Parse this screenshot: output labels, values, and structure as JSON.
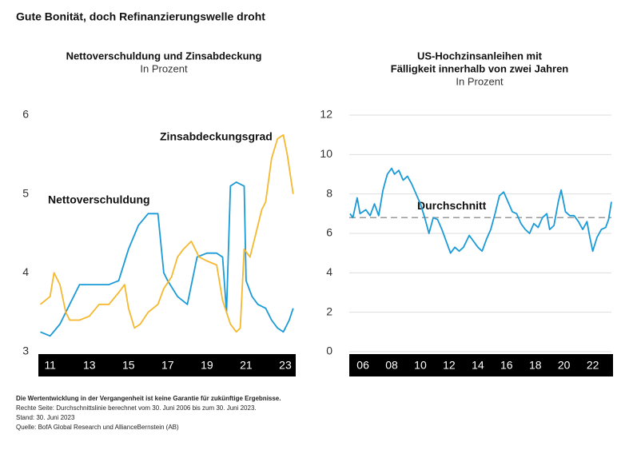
{
  "title": "Gute Bonität, doch Refinanzierungswelle droht",
  "chart_data": [
    {
      "type": "line",
      "title": [
        "Nettoverschuldung und Zinsabdeckung"
      ],
      "subtitle": "In Prozent",
      "xlim": [
        2010.4,
        2023.45
      ],
      "ylim": [
        3,
        6
      ],
      "yticks": [
        3,
        4,
        5,
        6
      ],
      "grid": false,
      "xticks": [
        {
          "value": 2011,
          "label": "11"
        },
        {
          "value": 2013,
          "label": "13"
        },
        {
          "value": 2015,
          "label": "15"
        },
        {
          "value": 2017,
          "label": "17"
        },
        {
          "value": 2019,
          "label": "19"
        },
        {
          "value": 2021,
          "label": "21"
        },
        {
          "value": 2023,
          "label": "23"
        }
      ],
      "series": [
        {
          "name": "Nettoverschuldung",
          "color": "#1a9bd7",
          "x": [
            2010.5,
            2011,
            2011.5,
            2012,
            2012.5,
            2013,
            2013.5,
            2014,
            2014.5,
            2015,
            2015.5,
            2016,
            2016.5,
            2016.8,
            2017,
            2017.5,
            2018,
            2018.5,
            2019,
            2019.5,
            2019.8,
            2020,
            2020.2,
            2020.5,
            2020.9,
            2021,
            2021.3,
            2021.6,
            2022,
            2022.3,
            2022.6,
            2022.9,
            2023.2,
            2023.4
          ],
          "values": [
            3.25,
            3.2,
            3.35,
            3.6,
            3.85,
            3.85,
            3.85,
            3.85,
            3.9,
            4.3,
            4.6,
            4.75,
            4.75,
            4.0,
            3.9,
            3.7,
            3.6,
            4.2,
            4.25,
            4.25,
            4.2,
            3.5,
            5.1,
            5.15,
            5.1,
            3.9,
            3.7,
            3.6,
            3.55,
            3.4,
            3.3,
            3.25,
            3.4,
            3.55
          ]
        },
        {
          "name": "Zinsabdeckungsgrad",
          "color": "#f5b82e",
          "x": [
            2010.5,
            2011,
            2011.2,
            2011.5,
            2011.8,
            2012,
            2012.5,
            2013,
            2013.5,
            2014,
            2014.5,
            2014.8,
            2015,
            2015.3,
            2015.6,
            2016,
            2016.5,
            2016.8,
            2017.2,
            2017.5,
            2017.8,
            2018.2,
            2018.6,
            2019,
            2019.5,
            2019.8,
            2020.2,
            2020.5,
            2020.7,
            2020.9,
            2021.2,
            2021.5,
            2021.8,
            2022,
            2022.3,
            2022.6,
            2022.9,
            2023.1,
            2023.4
          ],
          "values": [
            3.6,
            3.7,
            4.0,
            3.85,
            3.5,
            3.4,
            3.4,
            3.45,
            3.6,
            3.6,
            3.75,
            3.85,
            3.55,
            3.3,
            3.35,
            3.5,
            3.6,
            3.8,
            3.95,
            4.2,
            4.3,
            4.4,
            4.2,
            4.15,
            4.1,
            3.65,
            3.35,
            3.25,
            3.3,
            4.3,
            4.2,
            4.5,
            4.8,
            4.9,
            5.45,
            5.7,
            5.75,
            5.5,
            5.0
          ]
        }
      ]
    },
    {
      "type": "line",
      "title": [
        "US-Hochzinsanleihen mit",
        "Fälligkeit innerhalb von zwei Jahren"
      ],
      "subtitle": "In Prozent",
      "xlim": [
        2005.05,
        2023.3
      ],
      "ylim": [
        0,
        12
      ],
      "yticks": [
        0,
        2,
        4,
        6,
        8,
        10,
        12
      ],
      "grid": true,
      "xticks": [
        {
          "value": 2006,
          "label": "06"
        },
        {
          "value": 2008,
          "label": "08"
        },
        {
          "value": 2010,
          "label": "10"
        },
        {
          "value": 2012,
          "label": "12"
        },
        {
          "value": 2014,
          "label": "14"
        },
        {
          "value": 2016,
          "label": "16"
        },
        {
          "value": 2018,
          "label": "18"
        },
        {
          "value": 2020,
          "label": "20"
        },
        {
          "value": 2022,
          "label": "22"
        }
      ],
      "average": {
        "label": "Durchschnitt",
        "value": 6.8
      },
      "series": [
        {
          "color": "#1a9bd7",
          "x": [
            2005.1,
            2005.3,
            2005.6,
            2005.8,
            2006.2,
            2006.5,
            2006.8,
            2007.1,
            2007.4,
            2007.7,
            2008,
            2008.2,
            2008.5,
            2008.8,
            2009.1,
            2009.4,
            2009.7,
            2010,
            2010.3,
            2010.6,
            2010.9,
            2011.2,
            2011.5,
            2011.8,
            2012.1,
            2012.4,
            2012.7,
            2013,
            2013.4,
            2013.7,
            2014,
            2014.3,
            2014.6,
            2014.9,
            2015.2,
            2015.5,
            2015.8,
            2016.1,
            2016.4,
            2016.7,
            2017,
            2017.3,
            2017.6,
            2017.9,
            2018.2,
            2018.5,
            2018.8,
            2019,
            2019.3,
            2019.6,
            2019.8,
            2020.1,
            2020.4,
            2020.7,
            2021,
            2021.3,
            2021.6,
            2021.8,
            2022,
            2022.3,
            2022.6,
            2022.9,
            2023.1,
            2023.3
          ],
          "values": [
            7.0,
            6.8,
            7.8,
            7.0,
            7.2,
            6.9,
            7.5,
            6.9,
            8.2,
            9.0,
            9.3,
            9.0,
            9.2,
            8.7,
            8.9,
            8.5,
            8.0,
            7.5,
            6.8,
            6.0,
            6.8,
            6.7,
            6.2,
            5.6,
            5.0,
            5.3,
            5.1,
            5.3,
            5.9,
            5.6,
            5.3,
            5.1,
            5.7,
            6.2,
            7.0,
            7.9,
            8.1,
            7.6,
            7.1,
            7.0,
            6.5,
            6.2,
            6.0,
            6.5,
            6.3,
            6.8,
            7.0,
            6.2,
            6.4,
            7.6,
            8.2,
            7.1,
            6.9,
            6.9,
            6.6,
            6.2,
            6.6,
            5.8,
            5.1,
            5.8,
            6.2,
            6.3,
            6.7,
            7.6
          ]
        }
      ]
    }
  ],
  "notes": [
    "Die Wertentwicklung in der Vergangenheit ist keine Garantie für zukünftige Ergebnisse.",
    "Rechte Seite: Durchschnittslinie berechnet vom 30. Juni 2006 bis zum 30. Juni 2023.",
    "Stand: 30. Juni 2023",
    "Quelle: BofA Global Research und AllianceBernstein (AB)"
  ]
}
